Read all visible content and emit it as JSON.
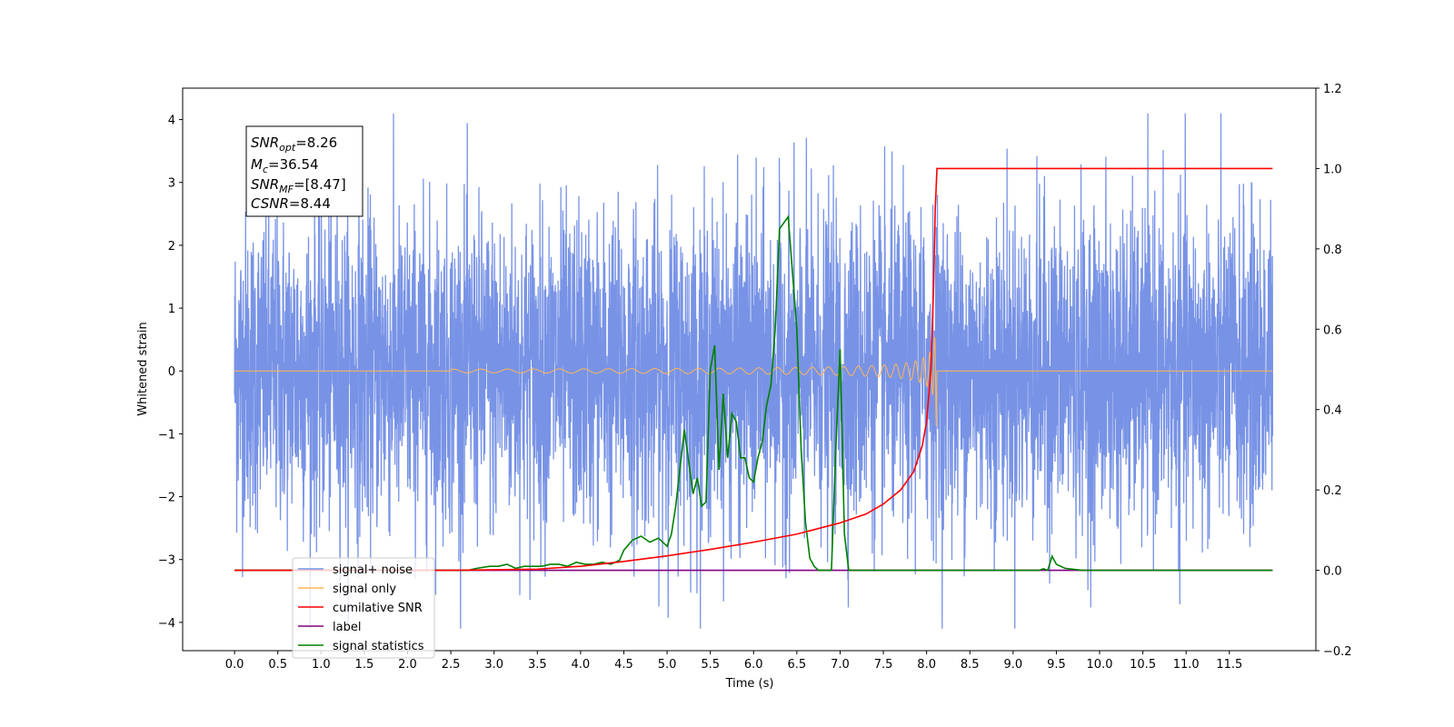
{
  "chart_data": {
    "type": "line",
    "title": "",
    "xlabel": "Time (s)",
    "ylabel": "Whitened strain",
    "ylabel_right": "",
    "xlim": [
      -0.6,
      12.5
    ],
    "ylim": [
      -4.45,
      4.5
    ],
    "ylim_right": [
      -0.2,
      1.2
    ],
    "x_ticks": [
      0.0,
      0.5,
      1.0,
      1.5,
      2.0,
      2.5,
      3.0,
      3.5,
      4.0,
      4.5,
      5.0,
      5.5,
      6.0,
      6.5,
      7.0,
      7.5,
      8.0,
      8.5,
      9.0,
      9.5,
      10.0,
      10.5,
      11.0,
      11.5
    ],
    "x_tick_labels": [
      "0.0",
      "0.5",
      "1.0",
      "1.5",
      "2.0",
      "2.5",
      "3.0",
      "3.5",
      "4.0",
      "4.5",
      "5.0",
      "5.5",
      "6.0",
      "6.5",
      "7.0",
      "7.5",
      "8.0",
      "8.5",
      "9.0",
      "9.5",
      "10.0",
      "10.5",
      "11.0",
      "11.5"
    ],
    "y_ticks": [
      4,
      3,
      2,
      1,
      0,
      -1,
      -2,
      -3,
      -4
    ],
    "y_tick_labels": [
      "4",
      "3",
      "2",
      "1",
      "0",
      "−1",
      "−2",
      "−3",
      "−4"
    ],
    "y_ticks_right": [
      1.2,
      1.0,
      0.8,
      0.6,
      0.4,
      0.2,
      0.0,
      -0.2
    ],
    "y_tick_labels_right": [
      "1.2",
      "1.0",
      "0.8",
      "0.6",
      "0.4",
      "0.2",
      "0.0",
      "−0.2"
    ],
    "grid": false,
    "legend_position": "lower-left",
    "stats_box": {
      "snr_opt": {
        "base": "SNR",
        "sub": "opt",
        "value": "=8.26"
      },
      "mc": {
        "base": "M",
        "sub": "c",
        "value": "=36.54"
      },
      "snr_mf": {
        "base": "SNR",
        "sub": "MF",
        "value": "=[8.47]"
      },
      "csnr": {
        "base": "CSNR",
        "sub": "",
        "value": "=8.44"
      }
    },
    "series": [
      {
        "name": "signal+ noise",
        "axis": "left",
        "color": "#7893e6",
        "description": "whitened strain noise, amplitude approx ±3.2 with peaks to ±4.1 over t = 0 to 12",
        "x_range": [
          0,
          12
        ],
        "amplitude": 1.25
      },
      {
        "name": "signal only",
        "axis": "left",
        "color": "#ffb557",
        "description": "chirp waveform, zero until ~t=3, amplitude growing to ~0.9 at merger t=8.12, then zero",
        "merger_time": 8.12,
        "x_range": [
          0,
          12
        ]
      },
      {
        "name": "cumilative SNR",
        "axis": "right",
        "color": "#ff0000",
        "x": [
          0.0,
          2.5,
          3.5,
          4.0,
          4.5,
          5.0,
          5.5,
          6.0,
          6.5,
          7.0,
          7.3,
          7.5,
          7.7,
          7.85,
          7.95,
          8.0,
          8.05,
          8.08,
          8.1,
          8.12,
          8.5,
          9.0,
          10.0,
          11.0,
          12.0
        ],
        "values": [
          0.0,
          0.0,
          0.003,
          0.01,
          0.022,
          0.036,
          0.052,
          0.07,
          0.09,
          0.118,
          0.14,
          0.165,
          0.2,
          0.245,
          0.31,
          0.37,
          0.5,
          0.7,
          0.9,
          1.0,
          1.0,
          1.0,
          1.0,
          1.0,
          1.0
        ]
      },
      {
        "name": "label",
        "axis": "right",
        "color": "#800080",
        "x": [
          0.0,
          12.0
        ],
        "values": [
          0.0,
          0.0
        ]
      },
      {
        "name": "signal statistics",
        "axis": "right",
        "color": "#008000",
        "x": [
          0.0,
          2.5,
          2.7,
          2.8,
          2.95,
          3.05,
          3.15,
          3.25,
          3.35,
          3.45,
          3.55,
          3.65,
          3.75,
          3.85,
          3.95,
          4.05,
          4.15,
          4.25,
          4.35,
          4.45,
          4.5,
          4.6,
          4.7,
          4.8,
          4.9,
          5.0,
          5.05,
          5.1,
          5.2,
          5.3,
          5.35,
          5.4,
          5.45,
          5.5,
          5.55,
          5.6,
          5.65,
          5.7,
          5.75,
          5.8,
          5.85,
          5.9,
          5.95,
          6.0,
          6.05,
          6.1,
          6.15,
          6.2,
          6.25,
          6.3,
          6.4,
          6.5,
          6.55,
          6.6,
          6.65,
          6.7,
          6.75,
          6.8,
          6.85,
          6.9,
          6.95,
          7.0,
          7.05,
          7.1,
          7.2,
          8.0,
          8.03,
          8.06,
          8.1,
          8.15,
          8.2,
          9.0,
          9.3,
          9.35,
          9.4,
          9.45,
          9.5,
          9.6,
          9.8,
          10.0,
          12.0
        ],
        "values": [
          0.0,
          0.0,
          0.0,
          0.005,
          0.01,
          0.01,
          0.015,
          0.005,
          0.01,
          0.01,
          0.01,
          0.015,
          0.015,
          0.01,
          0.02,
          0.015,
          0.015,
          0.02,
          0.015,
          0.025,
          0.05,
          0.075,
          0.085,
          0.07,
          0.08,
          0.06,
          0.09,
          0.16,
          0.35,
          0.19,
          0.23,
          0.16,
          0.17,
          0.5,
          0.56,
          0.25,
          0.44,
          0.28,
          0.39,
          0.37,
          0.28,
          0.28,
          0.23,
          0.22,
          0.28,
          0.32,
          0.41,
          0.46,
          0.6,
          0.85,
          0.88,
          0.6,
          0.3,
          0.12,
          0.03,
          0.01,
          0.0,
          0.0,
          0.0,
          0.0,
          0.3,
          0.55,
          0.09,
          0.0,
          0.0,
          0.0,
          0.0,
          0.0,
          0.0,
          0.0,
          0.0,
          0.0,
          0.0,
          0.004,
          0.0,
          0.035,
          0.015,
          0.005,
          0.0,
          0.0,
          0.0
        ]
      }
    ]
  }
}
